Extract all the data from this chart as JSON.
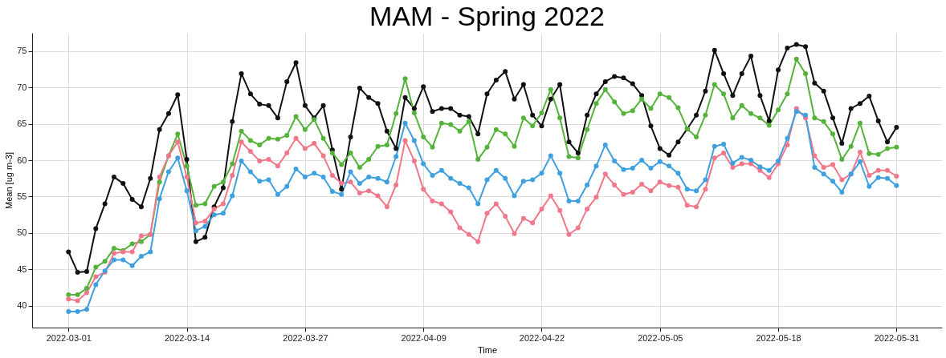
{
  "chart_data": {
    "type": "line",
    "title": "MAM - Spring 2022",
    "xlabel": "Time",
    "ylabel": "Mean [ug m-3]",
    "x": [
      "2022-03-01",
      "2022-03-02",
      "2022-03-03",
      "2022-03-04",
      "2022-03-05",
      "2022-03-06",
      "2022-03-07",
      "2022-03-08",
      "2022-03-09",
      "2022-03-10",
      "2022-03-11",
      "2022-03-12",
      "2022-03-13",
      "2022-03-14",
      "2022-03-15",
      "2022-03-16",
      "2022-03-17",
      "2022-03-18",
      "2022-03-19",
      "2022-03-20",
      "2022-03-21",
      "2022-03-22",
      "2022-03-23",
      "2022-03-24",
      "2022-03-25",
      "2022-03-26",
      "2022-03-27",
      "2022-03-28",
      "2022-03-29",
      "2022-03-30",
      "2022-03-31",
      "2022-04-01",
      "2022-04-02",
      "2022-04-03",
      "2022-04-04",
      "2022-04-05",
      "2022-04-06",
      "2022-04-07",
      "2022-04-08",
      "2022-04-09",
      "2022-04-10",
      "2022-04-11",
      "2022-04-12",
      "2022-04-13",
      "2022-04-14",
      "2022-04-15",
      "2022-04-16",
      "2022-04-17",
      "2022-04-18",
      "2022-04-19",
      "2022-04-20",
      "2022-04-21",
      "2022-04-22",
      "2022-04-23",
      "2022-04-24",
      "2022-04-25",
      "2022-04-26",
      "2022-04-27",
      "2022-04-28",
      "2022-04-29",
      "2022-04-30",
      "2022-05-01",
      "2022-05-02",
      "2022-05-03",
      "2022-05-04",
      "2022-05-05",
      "2022-05-06",
      "2022-05-07",
      "2022-05-08",
      "2022-05-09",
      "2022-05-10",
      "2022-05-11",
      "2022-05-12",
      "2022-05-13",
      "2022-05-14",
      "2022-05-15",
      "2022-05-16",
      "2022-05-17",
      "2022-05-18",
      "2022-05-19",
      "2022-05-20",
      "2022-05-21",
      "2022-05-22",
      "2022-05-23",
      "2022-05-24",
      "2022-05-25",
      "2022-05-26",
      "2022-05-27",
      "2022-05-28",
      "2022-05-29",
      "2022-05-30",
      "2022-05-31"
    ],
    "series": [
      {
        "color": "#111111",
        "values": [
          47.4,
          44.6,
          44.7,
          50.6,
          54.0,
          57.7,
          56.8,
          54.6,
          53.6,
          57.5,
          64.2,
          66.4,
          69.0,
          60.1,
          48.8,
          49.4,
          53.6,
          56.2,
          65.3,
          71.9,
          69.1,
          67.7,
          67.5,
          65.8,
          70.8,
          73.4,
          67.5,
          65.8,
          67.5,
          61.4,
          56.0,
          63.2,
          69.9,
          68.6,
          67.8,
          64.0,
          61.6,
          68.6,
          67.1,
          70.1,
          66.7,
          67.1,
          67.1,
          66.2,
          66.0,
          63.6,
          69.1,
          71.0,
          72.2,
          68.4,
          70.4,
          66.2,
          64.7,
          68.4,
          70.4,
          62.5,
          61.0,
          66.2,
          69.1,
          70.8,
          71.5,
          71.3,
          70.5,
          68.9,
          64.7,
          61.6,
          60.7,
          62.5,
          64.3,
          66.2,
          69.5,
          75.1,
          71.9,
          68.9,
          71.9,
          74.3,
          68.9,
          65.4,
          72.4,
          75.4,
          75.9,
          75.6,
          70.6,
          69.5,
          65.8,
          62.3,
          67.1,
          67.8,
          68.8,
          65.4,
          62.5,
          64.5
        ]
      },
      {
        "color": "#55b33b",
        "values": [
          41.5,
          41.5,
          42.4,
          45.3,
          46.1,
          47.9,
          47.6,
          48.5,
          48.8,
          49.8,
          57.0,
          60.6,
          63.6,
          59.2,
          53.8,
          54.0,
          56.4,
          57.0,
          59.5,
          64.0,
          62.7,
          62.1,
          63.0,
          62.9,
          63.4,
          66.0,
          64.2,
          65.6,
          63.0,
          61.0,
          59.4,
          61.0,
          59.0,
          60.1,
          61.9,
          62.1,
          66.4,
          71.2,
          66.5,
          63.2,
          61.8,
          65.1,
          64.9,
          64.0,
          65.3,
          60.1,
          61.8,
          64.2,
          63.6,
          61.9,
          65.8,
          64.7,
          66.5,
          69.7,
          65.8,
          60.5,
          60.3,
          64.2,
          67.8,
          69.7,
          68.0,
          66.4,
          66.8,
          68.4,
          67.1,
          69.1,
          68.6,
          67.2,
          64.3,
          63.2,
          66.2,
          70.4,
          69.1,
          65.8,
          67.5,
          66.4,
          65.8,
          64.8,
          66.9,
          69.1,
          73.9,
          71.9,
          65.8,
          65.3,
          63.6,
          60.1,
          61.9,
          65.1,
          60.9,
          60.8,
          61.6,
          61.8
        ]
      },
      {
        "color": "#f0788a",
        "values": [
          40.9,
          40.7,
          41.8,
          44.0,
          44.6,
          47.2,
          47.4,
          47.4,
          49.6,
          49.8,
          57.7,
          60.6,
          62.5,
          57.7,
          51.4,
          51.6,
          53.3,
          54.0,
          57.9,
          62.5,
          61.2,
          59.9,
          60.1,
          59.2,
          61.0,
          63.0,
          61.6,
          62.3,
          60.6,
          57.9,
          56.8,
          57.0,
          55.5,
          55.8,
          55.1,
          53.6,
          56.6,
          62.7,
          59.9,
          56.0,
          54.4,
          54.0,
          52.9,
          50.7,
          49.8,
          48.8,
          52.7,
          54.0,
          52.3,
          49.9,
          52.0,
          51.4,
          53.3,
          55.1,
          53.1,
          49.8,
          50.7,
          53.3,
          54.9,
          58.1,
          56.6,
          55.3,
          55.6,
          56.7,
          55.8,
          57.0,
          56.5,
          56.3,
          53.8,
          53.6,
          56.0,
          60.3,
          61.0,
          59.0,
          59.5,
          59.5,
          58.6,
          57.6,
          59.5,
          62.1,
          67.1,
          65.8,
          60.6,
          59.0,
          59.4,
          57.3,
          58.1,
          61.1,
          57.9,
          58.6,
          58.6,
          57.8
        ]
      },
      {
        "color": "#3fa0e0",
        "values": [
          39.2,
          39.2,
          39.5,
          42.9,
          44.8,
          46.3,
          46.3,
          45.5,
          46.8,
          47.4,
          54.7,
          58.4,
          60.3,
          55.8,
          50.3,
          50.9,
          52.5,
          52.7,
          55.1,
          59.9,
          58.4,
          57.1,
          57.3,
          55.3,
          56.4,
          58.8,
          57.7,
          58.2,
          57.7,
          55.7,
          55.3,
          58.4,
          56.8,
          57.7,
          57.5,
          57.0,
          60.5,
          65.1,
          62.7,
          59.5,
          57.9,
          58.6,
          57.5,
          56.8,
          56.2,
          54.0,
          57.3,
          58.6,
          57.5,
          55.1,
          57.1,
          57.3,
          58.2,
          60.6,
          58.2,
          54.4,
          54.4,
          56.6,
          59.2,
          62.1,
          59.9,
          58.7,
          58.9,
          60.0,
          58.9,
          59.8,
          59.2,
          58.2,
          56.0,
          55.8,
          57.3,
          61.9,
          62.2,
          59.6,
          60.4,
          60.0,
          59.1,
          58.6,
          59.9,
          63.0,
          66.7,
          66.2,
          59.0,
          58.1,
          57.1,
          55.6,
          58.1,
          59.8,
          56.4,
          57.6,
          57.5,
          56.5
        ]
      }
    ],
    "xlim": [
      "2022-02-25",
      "2022-06-05"
    ],
    "xticks": [
      "2022-03-01",
      "2022-03-14",
      "2022-03-27",
      "2022-04-09",
      "2022-04-22",
      "2022-05-05",
      "2022-05-18",
      "2022-05-31"
    ],
    "ylim": [
      37,
      77.5
    ],
    "yticks": [
      40,
      45,
      50,
      55,
      60,
      65,
      70,
      75
    ],
    "grid": true,
    "marker": "circle",
    "line_style": "solid",
    "legend": false
  }
}
